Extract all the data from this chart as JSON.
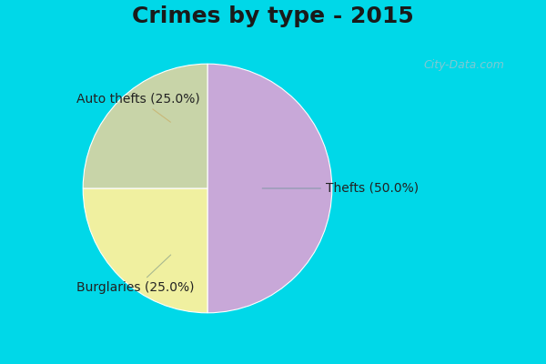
{
  "title": "Crimes by type - 2015",
  "slices": [
    {
      "label": "Thefts (50.0%)",
      "value": 50.0,
      "color": "#c8a8d8"
    },
    {
      "label": "Auto thefts (25.0%)",
      "value": 25.0,
      "color": "#f0f0a0"
    },
    {
      "label": "Burglaries (25.0%)",
      "value": 25.0,
      "color": "#c8d4a8"
    }
  ],
  "start_angle": 90,
  "background_top": "#00d8e8",
  "background_main_top": "#d8f0e8",
  "background_main_bottom": "#e8f8f0",
  "title_fontsize": 18,
  "label_fontsize": 10,
  "watermark": "City-Data.com",
  "top_bar_height": 0.09,
  "bottom_bar_height": 0.025
}
